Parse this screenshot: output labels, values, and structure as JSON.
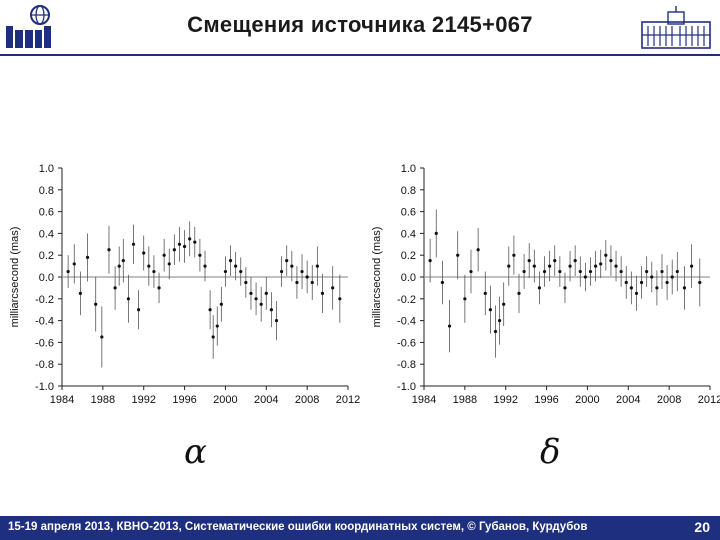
{
  "header": {
    "title": "Смещения источника 2145+067"
  },
  "footer": {
    "text": "15-19  апреля  2013,  КВНО-2013,  Систематические ошибки координатных систем, © Губанов, Курдубов",
    "page": "20"
  },
  "greek": {
    "left": "α",
    "right": "δ"
  },
  "colors": {
    "brand_blue": "#1f2f80",
    "zero_line": "#9a9a9a",
    "data": "#111111"
  },
  "chart_data": [
    {
      "type": "scatter",
      "panel": "alpha",
      "ylabel": "milliarcsecond (mas)",
      "xlabel": "",
      "xlim": [
        1984,
        2012
      ],
      "ylim": [
        -1.0,
        1.0
      ],
      "xticks": [
        "1984",
        "1988",
        "1992",
        "1996",
        "2000",
        "2004",
        "2008",
        "2012"
      ],
      "yticks": [
        "1.0",
        "0.8",
        "0.6",
        "0.4",
        "0.2",
        "0.0",
        "-0.2",
        "-0.4",
        "-0.6",
        "-0.8",
        "-1.0"
      ],
      "grid": false,
      "error_bars": true,
      "zero_line": true,
      "points": [
        [
          1984.6,
          0.05,
          0.15
        ],
        [
          1985.2,
          0.12,
          0.18
        ],
        [
          1985.8,
          -0.15,
          0.2
        ],
        [
          1986.5,
          0.18,
          0.22
        ],
        [
          1987.3,
          -0.25,
          0.25
        ],
        [
          1987.9,
          -0.55,
          0.28
        ],
        [
          1988.6,
          0.25,
          0.22
        ],
        [
          1989.2,
          -0.1,
          0.2
        ],
        [
          1989.6,
          0.1,
          0.18
        ],
        [
          1990.0,
          0.15,
          0.2
        ],
        [
          1990.5,
          -0.2,
          0.22
        ],
        [
          1991.0,
          0.3,
          0.18
        ],
        [
          1991.5,
          -0.3,
          0.18
        ],
        [
          1992.0,
          0.22,
          0.16
        ],
        [
          1992.5,
          0.1,
          0.18
        ],
        [
          1993.0,
          0.05,
          0.15
        ],
        [
          1993.5,
          -0.1,
          0.14
        ],
        [
          1994.0,
          0.2,
          0.15
        ],
        [
          1994.5,
          0.12,
          0.14
        ],
        [
          1995.0,
          0.25,
          0.14
        ],
        [
          1995.5,
          0.3,
          0.16
        ],
        [
          1996.0,
          0.28,
          0.15
        ],
        [
          1996.5,
          0.35,
          0.16
        ],
        [
          1997.0,
          0.32,
          0.14
        ],
        [
          1997.5,
          0.2,
          0.15
        ],
        [
          1998.0,
          0.1,
          0.14
        ],
        [
          1998.5,
          -0.3,
          0.18
        ],
        [
          1998.8,
          -0.55,
          0.2
        ],
        [
          1999.2,
          -0.45,
          0.18
        ],
        [
          1999.6,
          -0.25,
          0.16
        ],
        [
          2000.0,
          0.05,
          0.14
        ],
        [
          2000.5,
          0.15,
          0.14
        ],
        [
          2001.0,
          0.1,
          0.13
        ],
        [
          2001.5,
          0.05,
          0.13
        ],
        [
          2002.0,
          -0.05,
          0.14
        ],
        [
          2002.5,
          -0.15,
          0.15
        ],
        [
          2003.0,
          -0.2,
          0.15
        ],
        [
          2003.5,
          -0.25,
          0.16
        ],
        [
          2004.0,
          -0.15,
          0.15
        ],
        [
          2004.5,
          -0.3,
          0.16
        ],
        [
          2005.0,
          -0.4,
          0.18
        ],
        [
          2005.5,
          0.05,
          0.14
        ],
        [
          2006.0,
          0.15,
          0.14
        ],
        [
          2006.5,
          0.1,
          0.14
        ],
        [
          2007.0,
          -0.05,
          0.15
        ],
        [
          2007.5,
          0.05,
          0.16
        ],
        [
          2008.0,
          0.0,
          0.15
        ],
        [
          2008.5,
          -0.05,
          0.16
        ],
        [
          2009.0,
          0.1,
          0.18
        ],
        [
          2009.5,
          -0.15,
          0.18
        ],
        [
          2010.5,
          -0.1,
          0.2
        ],
        [
          2011.2,
          -0.2,
          0.22
        ]
      ]
    },
    {
      "type": "scatter",
      "panel": "delta",
      "ylabel": "milliarcsecond (mas)",
      "xlabel": "",
      "xlim": [
        1984,
        2012
      ],
      "ylim": [
        -1.0,
        1.0
      ],
      "xticks": [
        "1984",
        "1988",
        "1992",
        "1996",
        "2000",
        "2004",
        "2008",
        "2012"
      ],
      "yticks": [
        "1.0",
        "0.8",
        "0.6",
        "0.4",
        "0.2",
        "0.0",
        "-0.2",
        "-0.4",
        "-0.6",
        "-0.8",
        "-1.0"
      ],
      "grid": false,
      "error_bars": true,
      "zero_line": true,
      "points": [
        [
          1984.6,
          0.15,
          0.2
        ],
        [
          1985.2,
          0.4,
          0.22
        ],
        [
          1985.8,
          -0.05,
          0.2
        ],
        [
          1986.5,
          -0.45,
          0.24
        ],
        [
          1987.3,
          0.2,
          0.22
        ],
        [
          1988.0,
          -0.2,
          0.22
        ],
        [
          1988.6,
          0.05,
          0.2
        ],
        [
          1989.3,
          0.25,
          0.2
        ],
        [
          1990.0,
          -0.15,
          0.2
        ],
        [
          1990.5,
          -0.3,
          0.22
        ],
        [
          1991.0,
          -0.5,
          0.24
        ],
        [
          1991.4,
          -0.4,
          0.22
        ],
        [
          1991.8,
          -0.25,
          0.2
        ],
        [
          1992.3,
          0.1,
          0.18
        ],
        [
          1992.8,
          0.2,
          0.18
        ],
        [
          1993.3,
          -0.15,
          0.18
        ],
        [
          1993.8,
          0.05,
          0.16
        ],
        [
          1994.3,
          0.15,
          0.16
        ],
        [
          1994.8,
          0.1,
          0.15
        ],
        [
          1995.3,
          -0.1,
          0.15
        ],
        [
          1995.8,
          0.05,
          0.14
        ],
        [
          1996.3,
          0.1,
          0.14
        ],
        [
          1996.8,
          0.15,
          0.14
        ],
        [
          1997.3,
          0.05,
          0.14
        ],
        [
          1997.8,
          -0.1,
          0.14
        ],
        [
          1998.3,
          0.1,
          0.14
        ],
        [
          1998.8,
          0.15,
          0.14
        ],
        [
          1999.3,
          0.05,
          0.14
        ],
        [
          1999.8,
          0.0,
          0.13
        ],
        [
          2000.3,
          0.05,
          0.13
        ],
        [
          2000.8,
          0.1,
          0.14
        ],
        [
          2001.3,
          0.12,
          0.13
        ],
        [
          2001.8,
          0.2,
          0.14
        ],
        [
          2002.3,
          0.15,
          0.14
        ],
        [
          2002.8,
          0.1,
          0.14
        ],
        [
          2003.3,
          0.05,
          0.14
        ],
        [
          2003.8,
          -0.05,
          0.15
        ],
        [
          2004.3,
          -0.1,
          0.15
        ],
        [
          2004.8,
          -0.15,
          0.16
        ],
        [
          2005.3,
          -0.05,
          0.15
        ],
        [
          2005.8,
          0.05,
          0.14
        ],
        [
          2006.3,
          0.0,
          0.14
        ],
        [
          2006.8,
          -0.1,
          0.16
        ],
        [
          2007.3,
          0.05,
          0.16
        ],
        [
          2007.8,
          -0.05,
          0.16
        ],
        [
          2008.3,
          0.0,
          0.16
        ],
        [
          2008.8,
          0.05,
          0.18
        ],
        [
          2009.5,
          -0.1,
          0.2
        ],
        [
          2010.2,
          0.1,
          0.2
        ],
        [
          2011.0,
          -0.05,
          0.22
        ]
      ]
    }
  ]
}
